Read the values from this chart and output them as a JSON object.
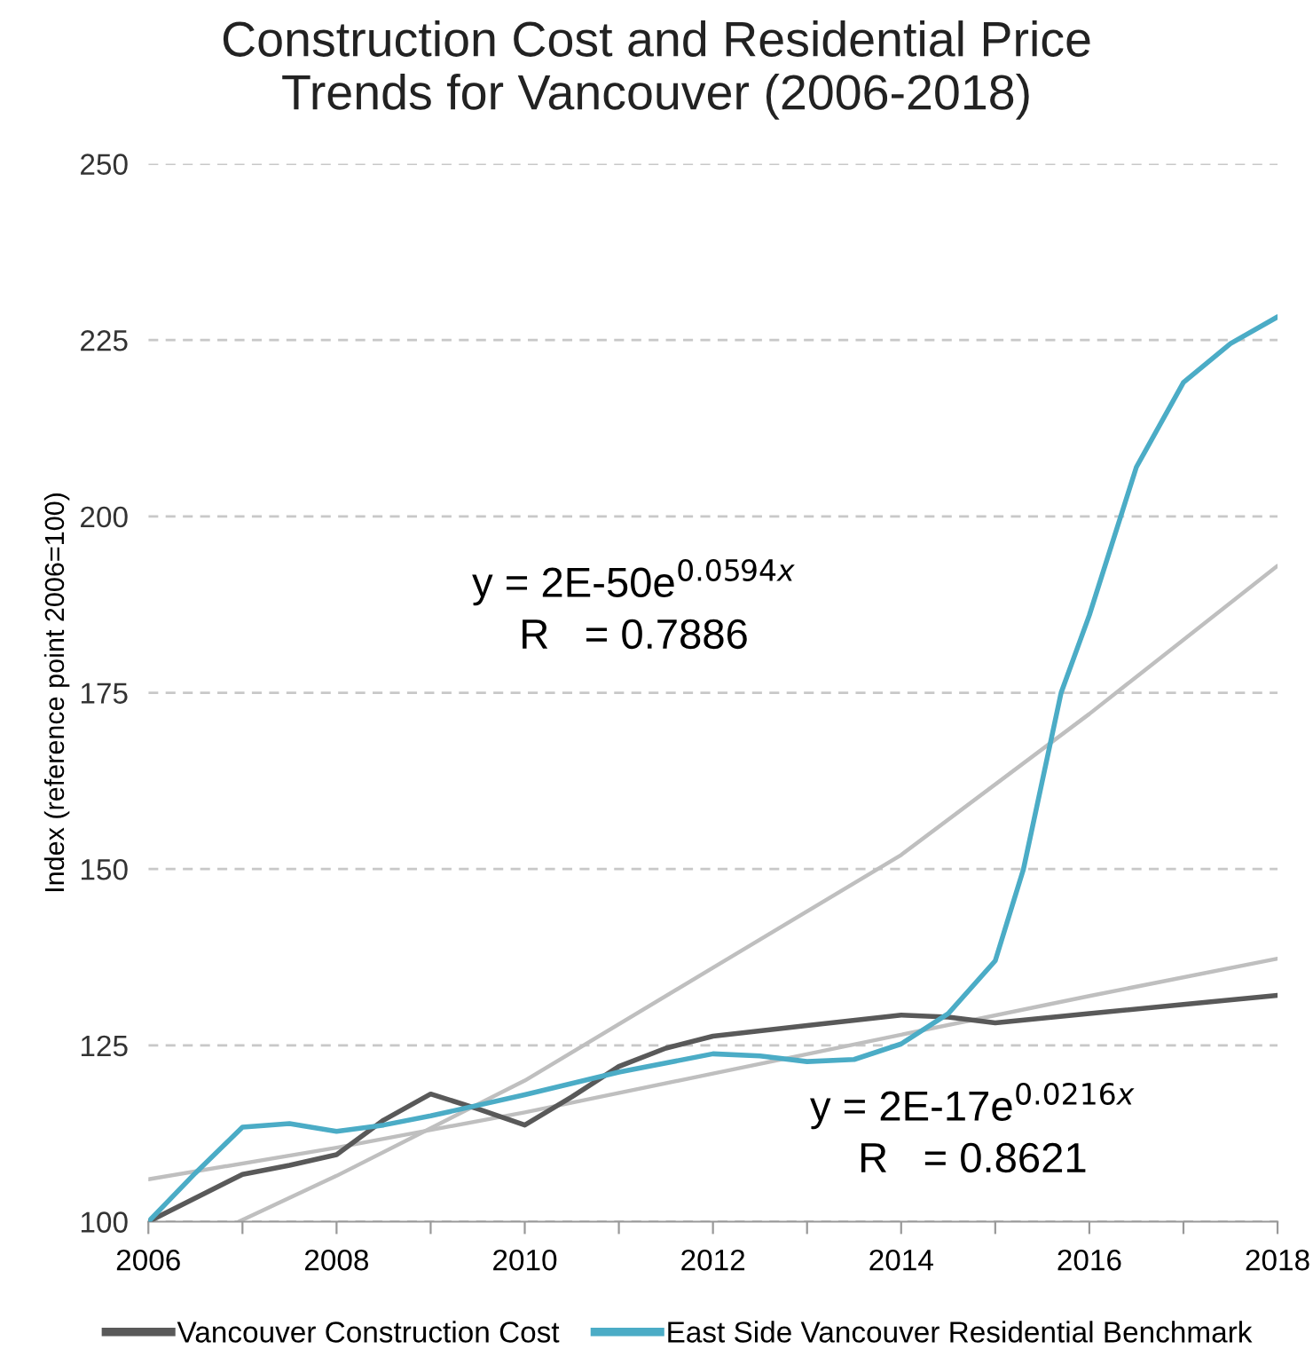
{
  "chart_data": {
    "type": "line",
    "title": "Construction Cost and Residential Price\nTrends for Vancouver (2006-2018)",
    "ylabel": "Index (reference point 2006=100)",
    "xlim": [
      2006,
      2018
    ],
    "xticks": [
      2006,
      {
        "value": 2007,
        "label": null
      },
      2008,
      {
        "value": 2009,
        "label": null
      },
      2010,
      {
        "value": 2011,
        "label": null
      },
      2012,
      {
        "value": 2013,
        "label": null
      },
      2014,
      {
        "value": 2015,
        "label": null
      },
      2016,
      {
        "value": 2017,
        "label": null
      },
      2018
    ],
    "ylim": [
      100,
      250
    ],
    "yticks": [
      100,
      125,
      150,
      175,
      200,
      225,
      250
    ],
    "grid": "y",
    "legend": "bottom",
    "annotations": [
      "y = 2E-50e$^{0.0594x}$\nR   = 0.7886",
      "y = 2E-17e$^{0.0216x}$\nR   = 0.8621"
    ],
    "series": [
      {
        "name": "Vancouver Construction Cost",
        "color": "#595959",
        "x": [
          2006,
          2007,
          2007.5,
          2008,
          2008.5,
          2009,
          2009.5,
          2010,
          2010.5,
          2011,
          2011.5,
          2012,
          2013,
          2014,
          2014.5,
          2015,
          2016,
          2017,
          2018
        ],
        "values": [
          100,
          106.7,
          108,
          109.5,
          114.4,
          118.1,
          116,
          113.7,
          117.7,
          122,
          124.6,
          126.3,
          127.8,
          129.3,
          129,
          128.2,
          129.5,
          130.8,
          132.1
        ]
      },
      {
        "name": "East Side Vancouver Residential Benchmark",
        "color": "#4bacc6",
        "x": [
          2006,
          2006.5,
          2007,
          2007.5,
          2008,
          2008.5,
          2009,
          2010,
          2011,
          2012,
          2012.5,
          2013,
          2013.5,
          2014,
          2014.5,
          2015,
          2015.3,
          2015.7,
          2016,
          2016.5,
          2017,
          2017.5,
          2018
        ],
        "values": [
          100,
          106.9,
          113.4,
          113.9,
          112.8,
          113.7,
          115,
          118,
          121.2,
          123.8,
          123.5,
          122.7,
          123,
          125.2,
          129.5,
          137,
          150,
          175,
          186,
          207,
          219,
          224.5,
          228.3
        ]
      },
      {
        "color": "#bfbfbf",
        "x": [
          2006.96,
          2008,
          2010,
          2012,
          2014,
          2016,
          2018
        ],
        "values": [
          100,
          106.5,
          120,
          136,
          152,
          172,
          193
        ]
      },
      {
        "color": "#bfbfbf",
        "x": [
          2006,
          2008,
          2010,
          2012,
          2014,
          2016,
          2018
        ],
        "values": [
          106,
          110.5,
          115.5,
          121,
          126.5,
          132,
          137.3
        ]
      }
    ]
  }
}
